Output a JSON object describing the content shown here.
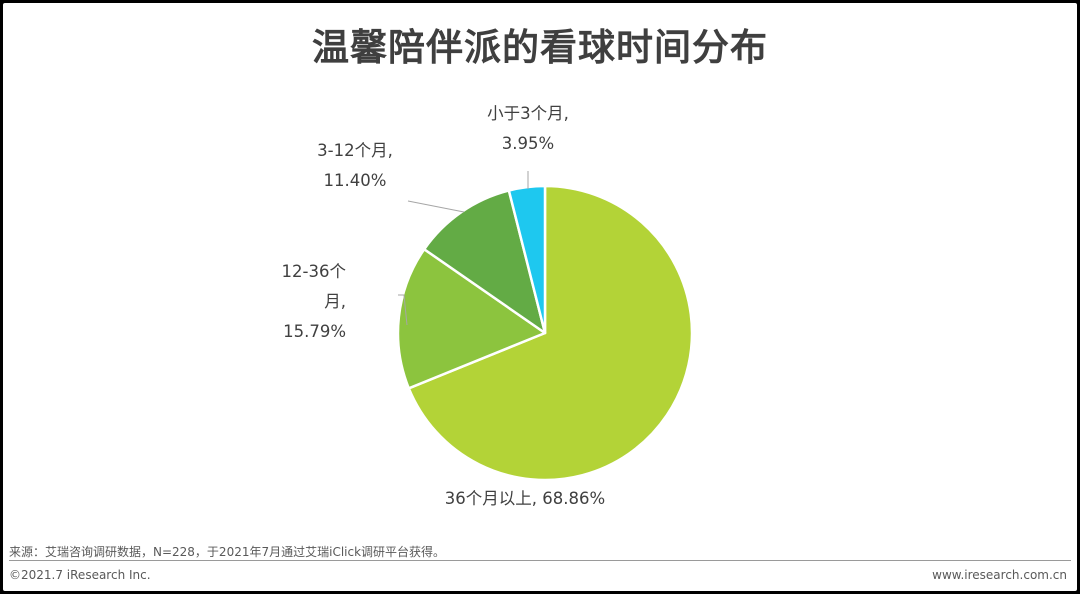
{
  "chart_data": {
    "type": "pie",
    "title": "温馨陪伴派的看球时间分布",
    "slices": [
      {
        "label_lines": [
          "36个月以上, 68.86%"
        ],
        "value": 68.86,
        "color": "#b3d337"
      },
      {
        "label_lines": [
          "12-36个",
          "月,",
          "15.79%"
        ],
        "value": 15.79,
        "color": "#8cc43e"
      },
      {
        "label_lines": [
          "3-12个月,",
          "11.40%"
        ],
        "value": 11.4,
        "color": "#63ab45"
      },
      {
        "label_lines": [
          "小于3个月,",
          "3.95%"
        ],
        "value": 3.95,
        "color": "#1ec8ef"
      }
    ],
    "legend": "none"
  },
  "footer": {
    "source": "来源：艾瑞咨询调研数据，N=228，于2021年7月通过艾瑞iClick调研平台获得。",
    "copyright": "©2021.7 iResearch Inc.",
    "website": "www.iresearch.com.cn"
  }
}
